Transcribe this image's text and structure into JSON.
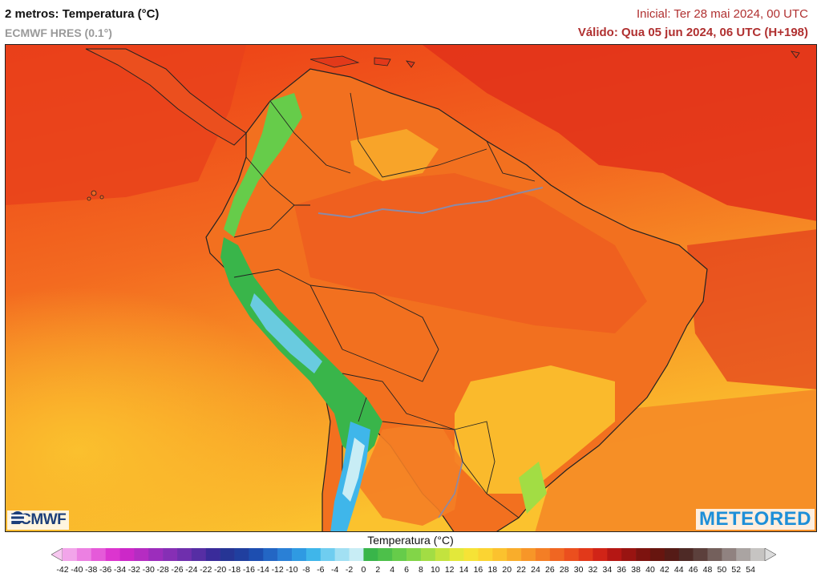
{
  "header": {
    "title": "2 metros: Temperatura (°C)",
    "model": "ECMWF HRES (0.1°)",
    "initial": "Inicial: Ter 28 mai 2024, 00 UTC",
    "valid": "Válido: Qua 05 jun 2024, 06 UTC (H+198)"
  },
  "logos": {
    "left": "ECMWF",
    "right": "METEORED"
  },
  "legend": {
    "title": "Temperatura (°C)",
    "values": [
      -42,
      -40,
      -38,
      -36,
      -34,
      -32,
      -30,
      -28,
      -26,
      -24,
      -22,
      -20,
      -18,
      -16,
      -14,
      -12,
      -10,
      -8,
      -6,
      -4,
      -2,
      0,
      2,
      4,
      6,
      8,
      10,
      12,
      14,
      16,
      18,
      20,
      22,
      24,
      26,
      28,
      30,
      32,
      34,
      36,
      38,
      40,
      42,
      44,
      46,
      48,
      50,
      52,
      54
    ],
    "colors": [
      "#f7c8f0",
      "#f2a5ea",
      "#ec80e2",
      "#e55ad9",
      "#dc35cf",
      "#cc28c8",
      "#b52cc2",
      "#9c2dbc",
      "#862fb5",
      "#6f2fad",
      "#562ea4",
      "#3a2b9a",
      "#263595",
      "#203f9f",
      "#1d4eb0",
      "#2366c4",
      "#2a80d6",
      "#2f9ae2",
      "#3fb6ea",
      "#6fcdf0",
      "#a2e0f3",
      "#c8edf5",
      "#39b54a",
      "#4dc04a",
      "#66cc4a",
      "#82d548",
      "#a2dd44",
      "#c3e33e",
      "#e3e83a",
      "#f6e336",
      "#fbd432",
      "#fbc22e",
      "#f9ad2b",
      "#f79628",
      "#f47e25",
      "#f06622",
      "#eb4f1e",
      "#e2391a",
      "#d12417",
      "#b51714",
      "#991411",
      "#7d130f",
      "#67150f",
      "#551b16",
      "#4e2a26",
      "#5c403c",
      "#74605c",
      "#908280",
      "#aaa4a2",
      "#c6c4c2",
      "#dcdcdc"
    ]
  }
}
